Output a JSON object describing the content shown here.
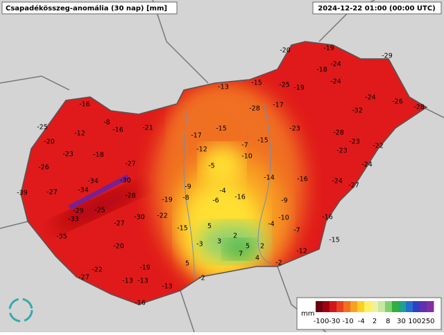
{
  "header": {
    "title": "Csapadékösszeg-anomália (30 nap) [mm]",
    "timestamp": "2024-12-22 01:00 (00:00 UTC)"
  },
  "stations": [
    -19,
    -20,
    -29,
    -18,
    -24,
    -13,
    -15,
    -25,
    -19,
    -24,
    -24,
    -26,
    -28,
    -16,
    -28,
    -17,
    -32,
    -8,
    -16,
    -21,
    -25,
    -12,
    -23,
    -15,
    -17,
    -28,
    -20,
    -12,
    -7,
    -15,
    -23,
    -22,
    -23,
    -18,
    -10,
    -23,
    -26,
    -27,
    -5,
    -24,
    -34,
    -30,
    -9,
    -14,
    -16,
    -24,
    -27,
    -39,
    -27,
    -34,
    -28,
    -4,
    -8,
    -6,
    -16,
    -19,
    -9,
    -29,
    -25,
    -33,
    -22,
    -30,
    -27,
    -10,
    -16,
    -4,
    -15,
    -7,
    -35,
    5,
    2,
    3,
    -3,
    -15,
    -20,
    5,
    2,
    7,
    -12,
    4,
    5,
    -19,
    -22,
    -2,
    -27,
    -13,
    -13,
    -2,
    -13,
    -16
  ],
  "legend": {
    "unit": "mm",
    "ticks": [
      -100,
      -30,
      -10,
      -4,
      2,
      8,
      30,
      100,
      250
    ]
  }
}
